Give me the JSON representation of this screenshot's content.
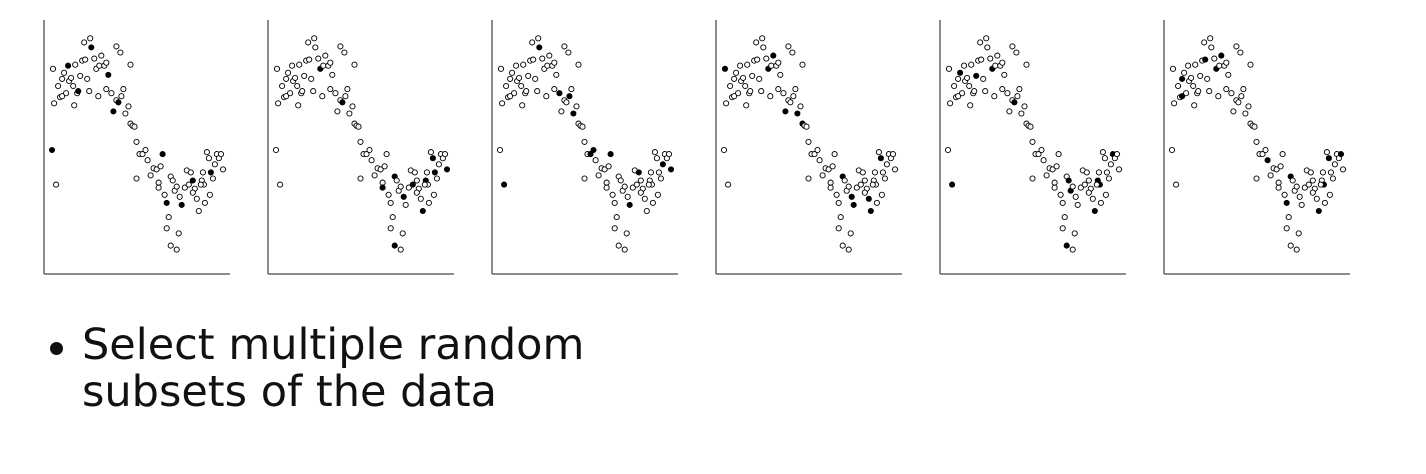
{
  "bullet": {
    "text": "Select multiple random subsets of the data"
  },
  "colors": {
    "axis": "#666666",
    "selected": "#000000",
    "unselected": "#ffffff",
    "marker_edge": "#000000"
  },
  "chart_data": {
    "type": "scatter",
    "panels": 6,
    "note": "Same data set shown in each panel; filled markers mark the random subset selected in that panel.",
    "x_axis": {
      "ticks": false,
      "label": "",
      "xlim": [
        0,
        185
      ]
    },
    "y_axis": {
      "ticks": false,
      "label": "",
      "ylim": [
        0,
        250
      ]
    },
    "grid": false,
    "points": [
      [
        9,
        202
      ],
      [
        12,
        88
      ],
      [
        10,
        168
      ],
      [
        8,
        122
      ],
      [
        14,
        185
      ],
      [
        16,
        174
      ],
      [
        18,
        192
      ],
      [
        20,
        198
      ],
      [
        22,
        178
      ],
      [
        25,
        190
      ],
      [
        27,
        193
      ],
      [
        29,
        185
      ],
      [
        31,
        206
      ],
      [
        33,
        178
      ],
      [
        36,
        195
      ],
      [
        38,
        210
      ],
      [
        41,
        211
      ],
      [
        43,
        192
      ],
      [
        45,
        180
      ],
      [
        47,
        223
      ],
      [
        50,
        212
      ],
      [
        52,
        202
      ],
      [
        55,
        205
      ],
      [
        57,
        215
      ],
      [
        60,
        205
      ],
      [
        62,
        208
      ],
      [
        64,
        196
      ],
      [
        67,
        178
      ],
      [
        69,
        160
      ],
      [
        72,
        171
      ],
      [
        74,
        169
      ],
      [
        77,
        175
      ],
      [
        79,
        182
      ],
      [
        81,
        158
      ],
      [
        84,
        165
      ],
      [
        86,
        148
      ],
      [
        88,
        146
      ],
      [
        90,
        145
      ],
      [
        92,
        130
      ],
      [
        95,
        118
      ],
      [
        98,
        118
      ],
      [
        101,
        122
      ],
      [
        103,
        112
      ],
      [
        106,
        97
      ],
      [
        109,
        104
      ],
      [
        112,
        103
      ],
      [
        114,
        90
      ],
      [
        116,
        106
      ],
      [
        118,
        118
      ],
      [
        120,
        78
      ],
      [
        122,
        70
      ],
      [
        124,
        56
      ],
      [
        126,
        96
      ],
      [
        128,
        92
      ],
      [
        130,
        82
      ],
      [
        132,
        86
      ],
      [
        135,
        76
      ],
      [
        137,
        68
      ],
      [
        140,
        85
      ],
      [
        142,
        102
      ],
      [
        144,
        88
      ],
      [
        146,
        100
      ],
      [
        148,
        92
      ],
      [
        150,
        84
      ],
      [
        152,
        74
      ],
      [
        154,
        62
      ],
      [
        157,
        92
      ],
      [
        159,
        88
      ],
      [
        162,
        120
      ],
      [
        164,
        114
      ],
      [
        166,
        100
      ],
      [
        168,
        94
      ],
      [
        170,
        108
      ],
      [
        172,
        118
      ],
      [
        174,
        114
      ],
      [
        176,
        118
      ],
      [
        178,
        103
      ],
      [
        18,
        175
      ],
      [
        24,
        205
      ],
      [
        34,
        180
      ],
      [
        40,
        228
      ],
      [
        46,
        232
      ],
      [
        30,
        166
      ],
      [
        92,
        94
      ],
      [
        114,
        85
      ],
      [
        122,
        45
      ],
      [
        126,
        28
      ],
      [
        132,
        24
      ],
      [
        134,
        40
      ],
      [
        165,
        78
      ],
      [
        160,
        70
      ],
      [
        156,
        88
      ],
      [
        148,
        80
      ],
      [
        158,
        100
      ],
      [
        76,
        218
      ],
      [
        54,
        175
      ],
      [
        72,
        224
      ],
      [
        86,
        206
      ],
      [
        62,
        182
      ]
    ],
    "subsets": [
      [
        3,
        19,
        26,
        28,
        30,
        48,
        50,
        57,
        62,
        70,
        78,
        79
      ],
      [
        21,
        30,
        52,
        56,
        60,
        65,
        66,
        69,
        70,
        76,
        84,
        86
      ],
      [
        1,
        19,
        27,
        31,
        33,
        40,
        41,
        48,
        57,
        61,
        72,
        76
      ],
      [
        0,
        21,
        23,
        28,
        33,
        35,
        52,
        56,
        57,
        64,
        65,
        69
      ],
      [
        1,
        7,
        14,
        21,
        30,
        53,
        54,
        65,
        66,
        67,
        73,
        86
      ],
      [
        6,
        16,
        21,
        23,
        42,
        50,
        52,
        65,
        67,
        69,
        75,
        77
      ]
    ]
  }
}
